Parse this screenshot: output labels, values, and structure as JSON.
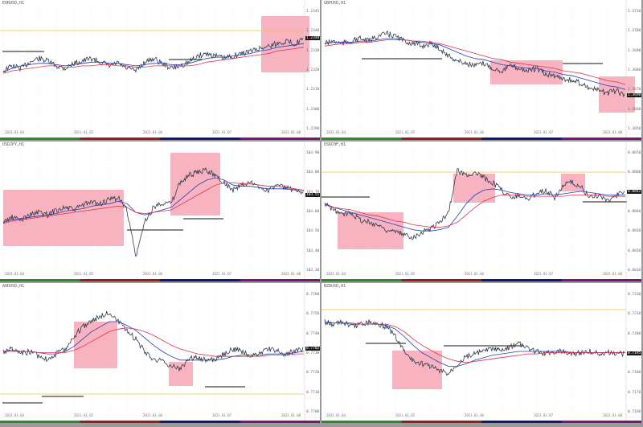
{
  "layout": "2x3 chart grid",
  "colors": {
    "price": "#2d3a4a",
    "ma_slow": "#e0304a",
    "ma_fast": "#1f3fb8",
    "zone": "#f7a6b5",
    "level_gold": "#f0c040",
    "level_black": "#111111",
    "grid": "#dcdcdc",
    "bar_colors": [
      "#2a8a2a",
      "#a01818",
      "#14147a",
      "#7a147a"
    ]
  },
  "panels": [
    {
      "name": "chart-1",
      "title": "EURUSD,H1",
      "price_tags": [
        "1.2345",
        "1.2340",
        "1.2330",
        "1.2320",
        "1.2310",
        "1.2300",
        "1.2290"
      ],
      "highlight_tag": "1.2348",
      "time_labels": [
        "2021.01.04",
        "2021.01.05",
        "2021.01.06",
        "2021.01.07",
        "2021.01.08"
      ],
      "chart_data": {
        "type": "line",
        "series": [
          {
            "values": [
              0.48,
              0.52,
              0.5,
              0.55,
              0.58,
              0.56,
              0.52,
              0.5,
              0.54,
              0.56,
              0.58,
              0.55,
              0.52,
              0.54,
              0.5,
              0.48,
              0.55,
              0.58,
              0.54,
              0.5,
              0.52,
              0.55,
              0.6,
              0.62,
              0.6,
              0.58,
              0.6,
              0.62,
              0.64,
              0.66,
              0.68,
              0.7,
              0.72,
              0.7,
              0.74
            ]
          },
          {
            "values": [
              0.47,
              0.5,
              0.52,
              0.53,
              0.54,
              0.54,
              0.53,
              0.52,
              0.53,
              0.54,
              0.55,
              0.55,
              0.54,
              0.54,
              0.53,
              0.52,
              0.53,
              0.54,
              0.54,
              0.53,
              0.53,
              0.54,
              0.56,
              0.58,
              0.59,
              0.59,
              0.6,
              0.61,
              0.62,
              0.64,
              0.65,
              0.67,
              0.68,
              0.69,
              0.7
            ]
          },
          {
            "values": [
              0.46,
              0.48,
              0.49,
              0.5,
              0.51,
              0.52,
              0.52,
              0.51,
              0.51,
              0.52,
              0.52,
              0.53,
              0.53,
              0.52,
              0.52,
              0.51,
              0.51,
              0.52,
              0.52,
              0.52,
              0.52,
              0.52,
              0.53,
              0.55,
              0.56,
              0.57,
              0.58,
              0.59,
              0.6,
              0.61,
              0.62,
              0.64,
              0.65,
              0.66,
              0.67
            ]
          }
        ]
      }
    },
    {
      "name": "chart-2",
      "title": "GBPUSD,H1",
      "price_tags": [
        "1.3710",
        "1.3700",
        "1.3690",
        "1.3680",
        "1.3670",
        "1.3660",
        "1.3650"
      ],
      "highlight_tag": "1.3690",
      "time_labels": [
        "2021.01.04",
        "2021.01.05",
        "2021.01.06",
        "2021.01.07",
        "2021.01.08"
      ],
      "chart_data": {
        "type": "line",
        "series": [
          {
            "values": [
              0.7,
              0.72,
              0.7,
              0.72,
              0.74,
              0.72,
              0.76,
              0.78,
              0.76,
              0.72,
              0.7,
              0.68,
              0.7,
              0.66,
              0.6,
              0.56,
              0.54,
              0.52,
              0.54,
              0.5,
              0.48,
              0.52,
              0.5,
              0.48,
              0.5,
              0.45,
              0.44,
              0.42,
              0.4,
              0.38,
              0.34,
              0.32,
              0.3,
              0.32,
              0.28
            ]
          },
          {
            "values": [
              0.7,
              0.71,
              0.71,
              0.71,
              0.72,
              0.72,
              0.73,
              0.74,
              0.74,
              0.73,
              0.72,
              0.71,
              0.7,
              0.69,
              0.66,
              0.63,
              0.6,
              0.58,
              0.57,
              0.55,
              0.53,
              0.52,
              0.51,
              0.5,
              0.5,
              0.48,
              0.47,
              0.45,
              0.44,
              0.42,
              0.4,
              0.38,
              0.36,
              0.35,
              0.33
            ]
          },
          {
            "values": [
              0.68,
              0.69,
              0.7,
              0.7,
              0.71,
              0.71,
              0.72,
              0.73,
              0.73,
              0.73,
              0.72,
              0.72,
              0.71,
              0.7,
              0.68,
              0.66,
              0.64,
              0.62,
              0.6,
              0.58,
              0.57,
              0.55,
              0.54,
              0.53,
              0.52,
              0.51,
              0.5,
              0.48,
              0.47,
              0.46,
              0.44,
              0.42,
              0.4,
              0.39,
              0.37
            ]
          }
        ]
      }
    },
    {
      "name": "chart-3",
      "title": "USDJPY,H1",
      "price_tags": [
        "103.90",
        "103.80",
        "103.70",
        "103.60",
        "103.50",
        "103.40",
        "103.30"
      ],
      "highlight_tag": "103.55",
      "time_labels": [
        "2021.01.04",
        "2021.01.05",
        "2021.01.06",
        "2021.01.07",
        "2021.01.08"
      ],
      "chart_data": {
        "type": "line",
        "series": [
          {
            "values": [
              0.4,
              0.44,
              0.42,
              0.46,
              0.48,
              0.46,
              0.5,
              0.52,
              0.5,
              0.54,
              0.56,
              0.55,
              0.58,
              0.6,
              0.5,
              0.12,
              0.4,
              0.52,
              0.56,
              0.55,
              0.72,
              0.78,
              0.8,
              0.82,
              0.78,
              0.72,
              0.66,
              0.7,
              0.72,
              0.68,
              0.66,
              0.7,
              0.68,
              0.65,
              0.62
            ]
          },
          {
            "values": [
              0.4,
              0.42,
              0.43,
              0.44,
              0.45,
              0.46,
              0.47,
              0.49,
              0.5,
              0.51,
              0.53,
              0.54,
              0.55,
              0.57,
              0.55,
              0.48,
              0.46,
              0.48,
              0.5,
              0.52,
              0.58,
              0.64,
              0.7,
              0.74,
              0.76,
              0.74,
              0.7,
              0.69,
              0.69,
              0.68,
              0.67,
              0.67,
              0.67,
              0.66,
              0.65
            ]
          },
          {
            "values": [
              0.39,
              0.41,
              0.42,
              0.43,
              0.44,
              0.45,
              0.46,
              0.47,
              0.48,
              0.49,
              0.5,
              0.51,
              0.52,
              0.53,
              0.52,
              0.48,
              0.47,
              0.48,
              0.49,
              0.5,
              0.54,
              0.58,
              0.62,
              0.66,
              0.7,
              0.72,
              0.72,
              0.71,
              0.71,
              0.7,
              0.69,
              0.69,
              0.68,
              0.67,
              0.66
            ]
          }
        ]
      }
    },
    {
      "name": "chart-4",
      "title": "USDCHF,H1",
      "price_tags": [
        "0.8870",
        "0.8860",
        "0.8850",
        "0.8840",
        "0.8830",
        "0.8820",
        "0.8810"
      ],
      "highlight_tag": "0.8842",
      "time_labels": [
        "2021.01.04",
        "2021.01.05",
        "2021.01.06",
        "2021.01.07",
        "2021.01.08"
      ],
      "chart_data": {
        "type": "line",
        "series": [
          {
            "values": [
              0.55,
              0.5,
              0.46,
              0.48,
              0.42,
              0.4,
              0.38,
              0.34,
              0.32,
              0.3,
              0.28,
              0.32,
              0.35,
              0.4,
              0.48,
              0.82,
              0.78,
              0.8,
              0.76,
              0.72,
              0.66,
              0.6,
              0.62,
              0.58,
              0.64,
              0.66,
              0.6,
              0.7,
              0.72,
              0.68,
              0.6,
              0.62,
              0.58,
              0.62,
              0.64
            ]
          },
          {
            "values": [
              0.55,
              0.52,
              0.5,
              0.48,
              0.46,
              0.44,
              0.42,
              0.4,
              0.38,
              0.36,
              0.34,
              0.33,
              0.33,
              0.34,
              0.36,
              0.45,
              0.55,
              0.62,
              0.66,
              0.67,
              0.66,
              0.64,
              0.63,
              0.62,
              0.62,
              0.63,
              0.62,
              0.63,
              0.64,
              0.65,
              0.64,
              0.63,
              0.62,
              0.62,
              0.62
            ]
          },
          {
            "values": [
              0.54,
              0.52,
              0.51,
              0.5,
              0.48,
              0.46,
              0.45,
              0.43,
              0.41,
              0.4,
              0.38,
              0.37,
              0.36,
              0.36,
              0.37,
              0.4,
              0.46,
              0.52,
              0.57,
              0.6,
              0.62,
              0.62,
              0.62,
              0.61,
              0.61,
              0.61,
              0.61,
              0.61,
              0.62,
              0.62,
              0.62,
              0.62,
              0.61,
              0.61,
              0.61
            ]
          }
        ]
      }
    },
    {
      "name": "chart-5",
      "title": "AUDUSD,H1",
      "price_tags": [
        "0.7760",
        "0.7750",
        "0.7740",
        "0.7730",
        "0.7720",
        "0.7710",
        "0.7700"
      ],
      "highlight_tag": "0.7702",
      "time_labels": [
        "2021.01.04",
        "2021.01.05",
        "2021.01.06",
        "2021.01.07",
        "2021.01.08"
      ],
      "chart_data": {
        "type": "line",
        "series": [
          {
            "values": [
              0.5,
              0.52,
              0.48,
              0.5,
              0.46,
              0.44,
              0.48,
              0.52,
              0.62,
              0.7,
              0.75,
              0.78,
              0.82,
              0.74,
              0.66,
              0.6,
              0.5,
              0.44,
              0.42,
              0.38,
              0.36,
              0.44,
              0.46,
              0.42,
              0.44,
              0.48,
              0.52,
              0.5,
              0.46,
              0.48,
              0.52,
              0.5,
              0.48,
              0.5,
              0.52
            ]
          },
          {
            "values": [
              0.5,
              0.51,
              0.5,
              0.5,
              0.49,
              0.48,
              0.48,
              0.5,
              0.54,
              0.6,
              0.66,
              0.7,
              0.74,
              0.74,
              0.71,
              0.67,
              0.61,
              0.55,
              0.5,
              0.46,
              0.43,
              0.43,
              0.43,
              0.43,
              0.43,
              0.44,
              0.46,
              0.47,
              0.47,
              0.47,
              0.48,
              0.48,
              0.48,
              0.49,
              0.5
            ]
          },
          {
            "values": [
              0.5,
              0.5,
              0.5,
              0.5,
              0.49,
              0.49,
              0.49,
              0.49,
              0.51,
              0.54,
              0.58,
              0.62,
              0.66,
              0.68,
              0.69,
              0.68,
              0.66,
              0.63,
              0.59,
              0.55,
              0.52,
              0.5,
              0.48,
              0.47,
              0.46,
              0.46,
              0.46,
              0.46,
              0.46,
              0.46,
              0.47,
              0.47,
              0.47,
              0.48,
              0.48
            ]
          }
        ]
      }
    },
    {
      "name": "chart-6",
      "title": "NZDUSD,H1",
      "price_tags": [
        "0.7220",
        "0.7210",
        "0.7200",
        "0.7190",
        "0.7180",
        "0.7170",
        "0.7160"
      ],
      "highlight_tag": "0.7195",
      "time_labels": [
        "2021.01.04",
        "2021.01.05",
        "2021.01.06",
        "2021.01.07",
        "2021.01.08"
      ],
      "chart_data": {
        "type": "line",
        "series": [
          {
            "values": [
              0.74,
              0.72,
              0.74,
              0.7,
              0.72,
              0.74,
              0.72,
              0.7,
              0.62,
              0.5,
              0.42,
              0.4,
              0.38,
              0.34,
              0.32,
              0.4,
              0.46,
              0.48,
              0.5,
              0.52,
              0.5,
              0.54,
              0.56,
              0.52,
              0.5,
              0.48,
              0.5,
              0.5,
              0.48,
              0.49,
              0.5,
              0.48,
              0.49,
              0.48,
              0.48
            ]
          },
          {
            "values": [
              0.74,
              0.73,
              0.73,
              0.72,
              0.72,
              0.72,
              0.72,
              0.71,
              0.68,
              0.62,
              0.55,
              0.49,
              0.45,
              0.41,
              0.38,
              0.38,
              0.4,
              0.43,
              0.45,
              0.47,
              0.48,
              0.49,
              0.5,
              0.5,
              0.5,
              0.5,
              0.5,
              0.5,
              0.49,
              0.49,
              0.49,
              0.49,
              0.49,
              0.49,
              0.49
            ]
          },
          {
            "values": [
              0.73,
              0.73,
              0.73,
              0.73,
              0.72,
              0.72,
              0.72,
              0.72,
              0.7,
              0.66,
              0.6,
              0.55,
              0.51,
              0.47,
              0.44,
              0.42,
              0.41,
              0.42,
              0.43,
              0.44,
              0.45,
              0.46,
              0.47,
              0.48,
              0.48,
              0.49,
              0.49,
              0.49,
              0.49,
              0.49,
              0.49,
              0.49,
              0.49,
              0.49,
              0.49
            ]
          }
        ]
      }
    }
  ]
}
